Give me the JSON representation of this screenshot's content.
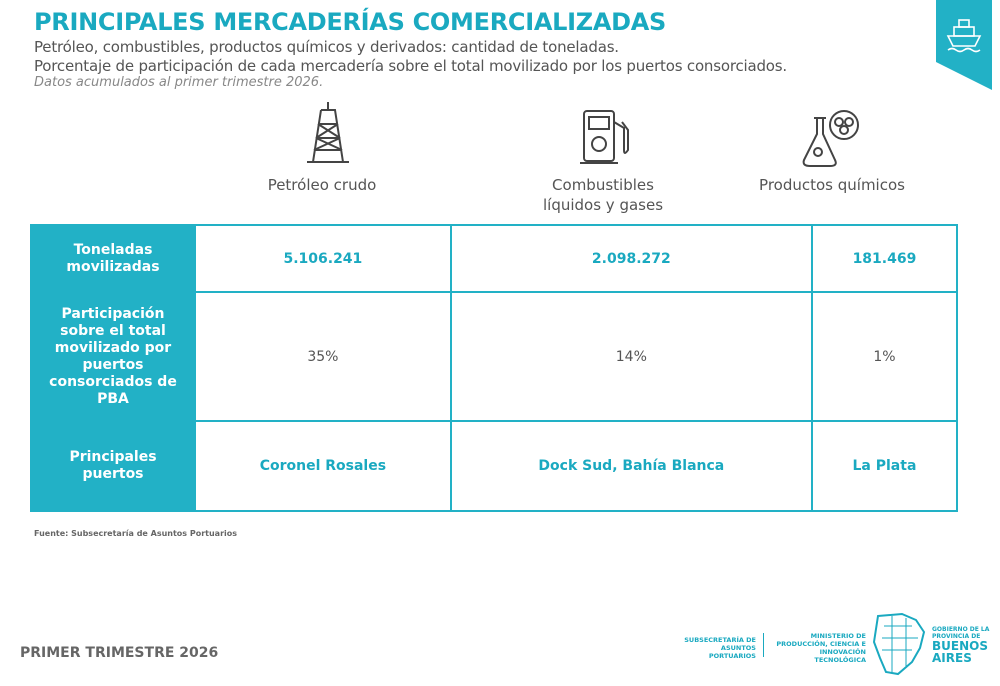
{
  "header": {
    "title": "PRINCIPALES MERCADERÍAS COMERCIALIZADAS",
    "subtitle_lines": [
      "Petróleo, combustibles, productos químicos y derivados: cantidad de toneladas.",
      "Porcentaje de participación de cada mercadería sobre el total movilizado por los puertos consorciados."
    ],
    "note": "Datos acumulados al primer trimestre 2026."
  },
  "columns": [
    "Petróleo crudo",
    "Combustibles líquidos y gases",
    "Productos químicos"
  ],
  "table": {
    "rows": [
      [
        "Toneladas movilizadas",
        "5.106.241",
        "2.098.272",
        "181.469"
      ],
      [
        "Participación sobre el total movilizado por puertos consorciados de PBA",
        "35%",
        "14%",
        "1%"
      ],
      [
        "Principales puertos",
        "Coronel Rosales",
        "Dock Sud, Bahía Blanca",
        "La Plata"
      ]
    ]
  },
  "footer": {
    "source": "Fuente: Subsecretaría de Asuntos Portuarios",
    "period": "PRIMER TRIMESTRE 2026",
    "logo_subsecretaria": "SUBSECRETARÍA DE ASUNTOS PORTUARIOS",
    "logo_ministerio": "MINISTERIO DE PRODUCCIÓN, CIENCIA E INNOVACIÓN TECNOLÓGICA",
    "logo_gobierno_small": "GOBIERNO DE LA PROVINCIA DE",
    "logo_gobierno_big": "BUENOS AIRES"
  }
}
